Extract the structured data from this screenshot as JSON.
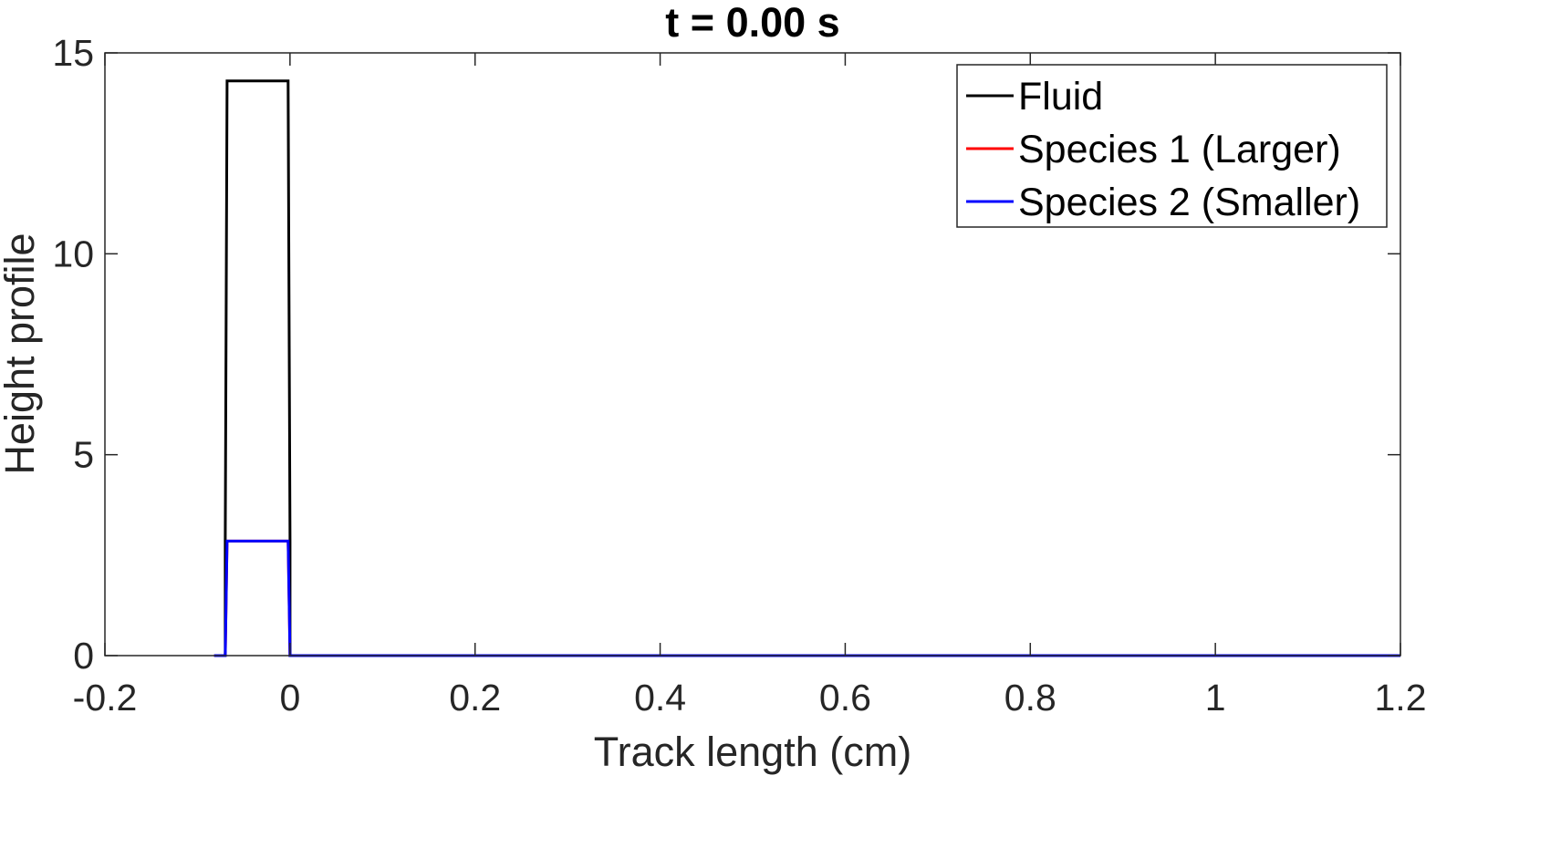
{
  "chart_data": {
    "type": "line",
    "title": "t =  0.00 s",
    "xlabel": "Track length (cm)",
    "ylabel": "Height profile",
    "xlim": [
      -0.2,
      1.2
    ],
    "ylim": [
      0,
      15
    ],
    "xticks": [
      -0.2,
      0,
      0.2,
      0.4,
      0.6,
      0.8,
      1,
      1.2
    ],
    "xtick_labels": [
      "-0.2",
      "0",
      "0.2",
      "0.4",
      "0.6",
      "0.8",
      "1",
      "1.2"
    ],
    "yticks": [
      0,
      5,
      10,
      15
    ],
    "ytick_labels": [
      "0",
      "5",
      "10",
      "15"
    ],
    "grid": false,
    "legend_position": "top-right",
    "series": [
      {
        "name": "Fluid",
        "color": "#000000",
        "x": [
          -0.07,
          -0.07,
          -0.068,
          -0.002,
          0,
          0,
          1.2
        ],
        "y": [
          0,
          2.85,
          14.3,
          14.3,
          2.85,
          0,
          0
        ]
      },
      {
        "name": "Species 1 (Larger)",
        "color": "#ff0000",
        "x": [
          -0.082,
          -0.07,
          -0.068,
          -0.002,
          0,
          1.2
        ],
        "y": [
          0,
          0,
          2.85,
          2.85,
          0,
          0
        ]
      },
      {
        "name": "Species 2 (Smaller)",
        "color": "#0000ff",
        "x": [
          -0.082,
          -0.07,
          -0.068,
          -0.002,
          0,
          1.2
        ],
        "y": [
          0,
          0,
          2.85,
          2.85,
          0,
          0
        ]
      }
    ]
  }
}
